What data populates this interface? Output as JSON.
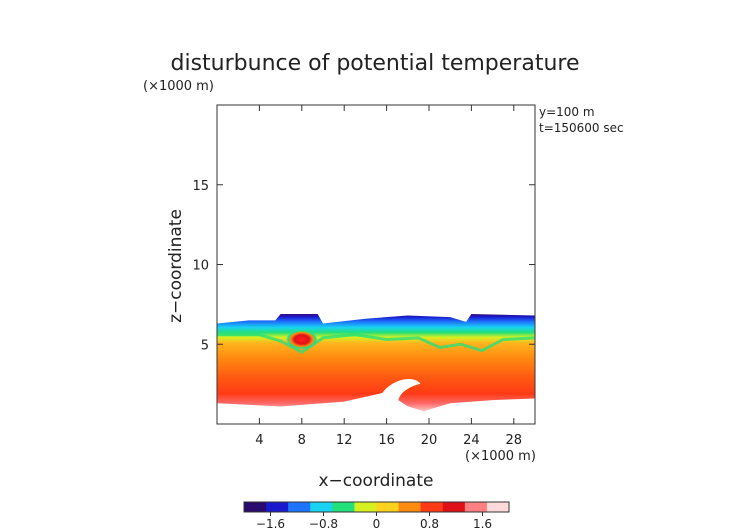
{
  "chart_data": {
    "type": "heatmap",
    "title": "disturbunce of potential temperature",
    "title_unit": "(×1000 m)",
    "xlabel": "x−coordinate",
    "ylabel": "z−coordinate",
    "x_unit": "(×1000 m)",
    "annotations": [
      "y=100  m",
      "t=150600 sec"
    ],
    "xlim": [
      0,
      30
    ],
    "ylim": [
      0,
      20
    ],
    "xticks": [
      4,
      8,
      12,
      16,
      20,
      24,
      28
    ],
    "xtick_labels": [
      "4",
      "8",
      "12",
      "16",
      "20",
      "24",
      "28"
    ],
    "yticks": [
      5,
      10,
      15
    ],
    "ytick_labels": [
      "5",
      "10",
      "15"
    ],
    "colorbar": {
      "range": [
        -2.0,
        2.0
      ],
      "ticks": [
        -1.6,
        -0.8,
        0,
        0.8,
        1.6
      ],
      "tick_labels": [
        "−1.6",
        "−0.8",
        "0",
        "0.8",
        "1.6"
      ],
      "colors": [
        "#2a0a6e",
        "#1a1acd",
        "#1e74ff",
        "#18d4f0",
        "#22e07a",
        "#d6f020",
        "#ffd21e",
        "#ff8a10",
        "#ff3a14",
        "#e01018",
        "#ff8080",
        "#ffdada"
      ]
    },
    "field_description_series": {
      "top_boundary_z": [
        [
          0,
          6.3
        ],
        [
          3,
          6.5
        ],
        [
          5.5,
          6.5
        ],
        [
          6,
          6.9
        ],
        [
          9.5,
          6.9
        ],
        [
          10,
          6.3
        ],
        [
          14,
          6.6
        ],
        [
          18,
          6.8
        ],
        [
          22,
          6.7
        ],
        [
          23.5,
          6.4
        ],
        [
          24,
          6.9
        ],
        [
          30,
          6.8
        ]
      ],
      "bottom_boundary_z": [
        [
          0,
          1.3
        ],
        [
          6,
          1.1
        ],
        [
          12,
          1.4
        ],
        [
          16,
          2.0
        ],
        [
          18,
          1.1
        ],
        [
          19.5,
          0.8
        ],
        [
          22,
          1.3
        ],
        [
          26,
          1.5
        ],
        [
          30,
          1.6
        ]
      ],
      "warm_anomaly_center": [
        8,
        5.3
      ],
      "cold_intrusion_center": [
        17.5,
        1.9
      ]
    }
  }
}
